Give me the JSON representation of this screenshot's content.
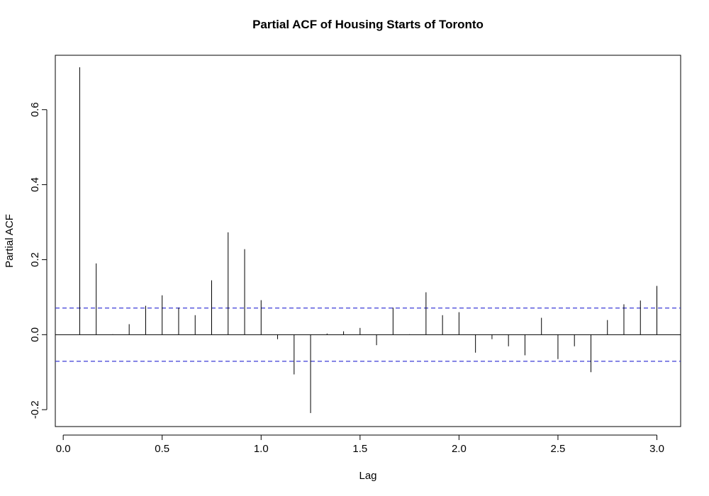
{
  "chart_data": {
    "type": "bar",
    "style": "pacf-spikes",
    "title": "Partial ACF of Housing Starts of Toronto",
    "xlabel": "Lag",
    "ylabel": "Partial ACF",
    "xlim": [
      -0.04,
      3.12
    ],
    "ylim": [
      -0.245,
      0.745
    ],
    "x_ticks": [
      0.0,
      0.5,
      1.0,
      1.5,
      2.0,
      2.5,
      3.0
    ],
    "x_tick_labels": [
      "0.0",
      "0.5",
      "1.0",
      "1.5",
      "2.0",
      "2.5",
      "3.0"
    ],
    "y_ticks": [
      -0.2,
      0.0,
      0.2,
      0.4,
      0.6
    ],
    "y_tick_labels": [
      "-0.2",
      "0.0",
      "0.2",
      "0.4",
      "0.6"
    ],
    "confidence_bound": 0.071,
    "zero_line": true,
    "grid": false,
    "colors": {
      "spike": "#000000",
      "bound": "#3b3bd6",
      "axis": "#000000"
    },
    "lags": [
      0.0833,
      0.1667,
      0.25,
      0.3333,
      0.4167,
      0.5,
      0.5833,
      0.6667,
      0.75,
      0.8333,
      0.9167,
      1.0,
      1.0833,
      1.1667,
      1.25,
      1.3333,
      1.4167,
      1.5,
      1.5833,
      1.6667,
      1.75,
      1.8333,
      1.9167,
      2.0,
      2.0833,
      2.1667,
      2.25,
      2.3333,
      2.4167,
      2.5,
      2.5833,
      2.6667,
      2.75,
      2.8333,
      2.9167,
      3.0
    ],
    "values": [
      0.713,
      0.19,
      0.001,
      0.028,
      0.077,
      0.105,
      0.072,
      0.052,
      0.145,
      0.273,
      0.228,
      0.092,
      -0.012,
      -0.106,
      -0.209,
      0.003,
      0.009,
      0.018,
      -0.028,
      0.072,
      0.001,
      0.113,
      0.052,
      0.06,
      -0.048,
      -0.012,
      -0.031,
      -0.055,
      0.045,
      -0.065,
      -0.031,
      -0.1,
      0.039,
      0.081,
      0.091,
      0.13
    ]
  }
}
